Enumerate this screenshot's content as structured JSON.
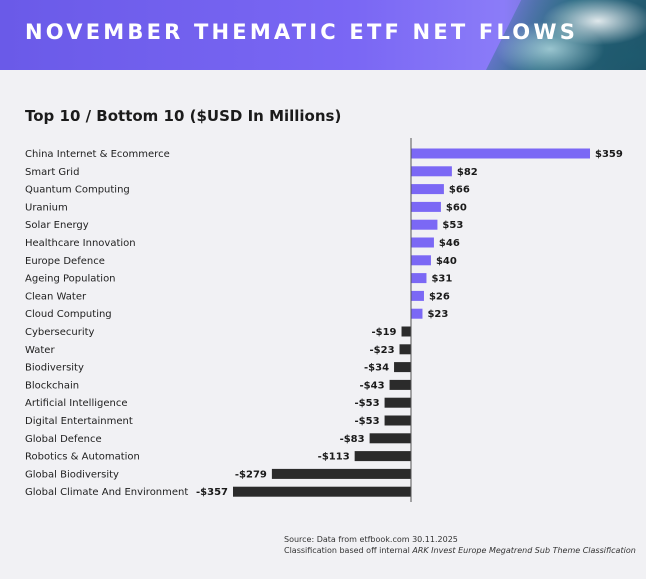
{
  "header": {
    "title": "NOVEMBER THEMATIC ETF NET FLOWS"
  },
  "chart_data": {
    "type": "bar",
    "orientation": "horizontal",
    "title": "Top 10 / Bottom 10 ($USD In Millions)",
    "categories": [
      "China Internet & Ecommerce",
      "Smart Grid",
      "Quantum Computing",
      "Uranium",
      "Solar Energy",
      "Healthcare Innovation",
      "Europe Defence",
      "Ageing Population",
      "Clean Water",
      "Cloud Computing",
      "Cybersecurity",
      "Water",
      "Biodiversity",
      "Blockchain",
      "Artificial Intelligence",
      "Digital Entertainment",
      "Global Defence",
      "Robotics & Automation",
      "Global Biodiversity",
      "Global Climate And Environment"
    ],
    "values": [
      359,
      82,
      66,
      60,
      53,
      46,
      40,
      31,
      26,
      23,
      -19,
      -23,
      -34,
      -43,
      -53,
      -53,
      -83,
      -113,
      -279,
      -357
    ],
    "labels": [
      "$359",
      "$82",
      "$66",
      "$60",
      "$53",
      "$46",
      "$40",
      "$31",
      "$26",
      "$23",
      "-$19",
      "-$23",
      "-$34",
      "-$43",
      "-$53",
      "-$53",
      "-$83",
      "-$113",
      "-$279",
      "-$357"
    ],
    "colors": {
      "positive": "#7b68f5",
      "negative": "#2b2b2b",
      "axis": "#555555"
    },
    "xlabel": "",
    "ylabel": "",
    "xlim": [
      -357,
      359
    ],
    "grid": false
  },
  "footer": {
    "source": "Source: Data from etfbook.com 30.11.2025",
    "classification_prefix": "Classification based off internal",
    "classification_emphasis": "ARK Invest Europe Megatrend Sub Theme Classification"
  }
}
